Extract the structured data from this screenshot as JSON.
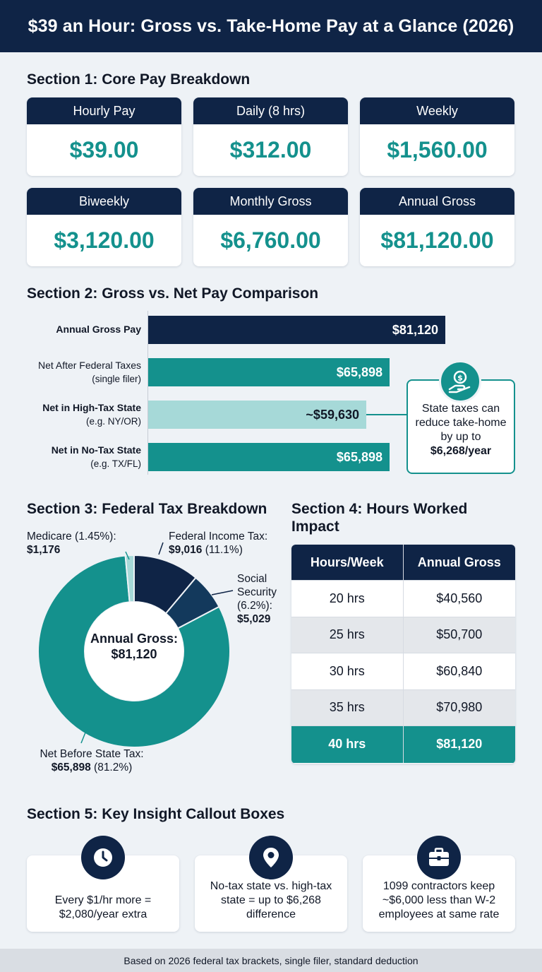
{
  "title": "$39 an Hour: Gross vs. Take-Home Pay at a Glance (2026)",
  "colors": {
    "navy": "#0f2446",
    "teal": "#14918d",
    "light_teal": "#a6d9d8",
    "background": "#eef2f6"
  },
  "section1": {
    "title": "Section 1: Core Pay Breakdown",
    "cards": [
      {
        "label": "Hourly Pay",
        "value": "$39.00"
      },
      {
        "label": "Daily (8 hrs)",
        "value": "$312.00"
      },
      {
        "label": "Weekly",
        "value": "$1,560.00"
      },
      {
        "label": "Biweekly",
        "value": "$3,120.00"
      },
      {
        "label": "Monthly Gross",
        "value": "$6,760.00"
      },
      {
        "label": "Annual Gross",
        "value": "$81,120.00"
      }
    ]
  },
  "section2": {
    "title": "Section 2: Gross vs. Net Pay Comparison",
    "bars": [
      {
        "label": "Annual Gross Pay",
        "sublabel": "",
        "value_label": "$81,120"
      },
      {
        "label": "Net After Federal Taxes",
        "sublabel": "(single filer)",
        "value_label": "$65,898"
      },
      {
        "label": "Net in High-Tax State",
        "sublabel": "(e.g. NY/OR)",
        "value_label": "~$59,630"
      },
      {
        "label": "Net in No-Tax State",
        "sublabel": "(e.g. TX/FL)",
        "value_label": "$65,898"
      }
    ],
    "callout": {
      "text": "State taxes can reduce take-home by up to",
      "amount": "$6,268/year",
      "icon": "dollar-hand-icon"
    }
  },
  "section3": {
    "title": "Section 3: Federal Tax Breakdown",
    "center_label": "Annual Gross:",
    "center_value": "$81,120",
    "labels": {
      "medicare_name": "Medicare (1.45%):",
      "medicare_value": "$1,176",
      "fit_name": "Federal Income Tax:",
      "fit_value": "$9,016",
      "fit_pct": "(11.1%)",
      "ss_name_1": "Social",
      "ss_name_2": "Security",
      "ss_pct": "(6.2%):",
      "ss_value": "$5,029",
      "net_name": "Net Before State Tax:",
      "net_value": "$65,898",
      "net_pct": "(81.2%)"
    }
  },
  "section4": {
    "title": "Section 4: Hours Worked Impact",
    "headers": [
      "Hours/Week",
      "Annual Gross"
    ],
    "rows": [
      [
        "20 hrs",
        "$40,560"
      ],
      [
        "25 hrs",
        "$50,700"
      ],
      [
        "30 hrs",
        "$60,840"
      ],
      [
        "35 hrs",
        "$70,980"
      ],
      [
        "40 hrs",
        "$81,120"
      ]
    ]
  },
  "section5": {
    "title": "Section 5: Key Insight Callout Boxes",
    "boxes": [
      {
        "icon": "clock-icon",
        "text": "Every $1/hr more = $2,080/year extra"
      },
      {
        "icon": "location-pin-icon",
        "text": "No-tax state vs. high-tax state = up to $6,268 difference"
      },
      {
        "icon": "briefcase-icon",
        "text": "1099 contractors keep ~$6,000 less than W-2 employees at same rate"
      }
    ]
  },
  "footer": "Based on 2026 federal tax brackets, single filer, standard deduction",
  "chart_data": [
    {
      "type": "bar",
      "orientation": "horizontal",
      "title": "Section 2: Gross vs. Net Pay Comparison",
      "categories": [
        "Annual Gross Pay",
        "Net After Federal Taxes",
        "Net in High-Tax State",
        "Net in No-Tax State"
      ],
      "values": [
        81120,
        65898,
        59630,
        65898
      ],
      "value_labels": [
        "$81,120",
        "$65,898",
        "~$59,630",
        "$65,898"
      ],
      "bar_colors": [
        "#0f2446",
        "#14918d",
        "#a6d9d8",
        "#14918d"
      ],
      "xlim": [
        0,
        81120
      ]
    },
    {
      "type": "pie",
      "subtype": "donut",
      "title": "Section 3: Federal Tax Breakdown",
      "slices": [
        {
          "name": "Federal Income Tax",
          "value": 9016,
          "color": "#0f2446"
        },
        {
          "name": "Social Security",
          "value": 5029,
          "color": "#13395c"
        },
        {
          "name": "Net Before State Tax",
          "value": 65898,
          "color": "#14918d"
        },
        {
          "name": "Medicare",
          "value": 1176,
          "color": "#a6d9d8"
        }
      ],
      "total": 81120
    },
    {
      "type": "table",
      "title": "Section 4: Hours Worked Impact",
      "columns": [
        "Hours/Week",
        "Annual Gross"
      ],
      "rows": [
        [
          "20 hrs",
          "$40,560"
        ],
        [
          "25 hrs",
          "$50,700"
        ],
        [
          "30 hrs",
          "$60,840"
        ],
        [
          "35 hrs",
          "$70,980"
        ],
        [
          "40 hrs",
          "$81,120"
        ]
      ]
    }
  ]
}
